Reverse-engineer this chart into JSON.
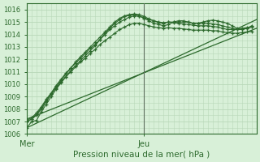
{
  "title": "",
  "xlabel": "Pression niveau de la mer( hPa )",
  "ylim": [
    1006.0,
    1016.5
  ],
  "xlim": [
    0,
    47
  ],
  "background_color": "#d8f0d8",
  "grid_color": "#b8d8b8",
  "line_color": "#2d6a2d",
  "xtick_labels": [
    "Mer",
    "Jeu"
  ],
  "xtick_positions": [
    0,
    24
  ],
  "ytick_positions": [
    1006,
    1007,
    1008,
    1009,
    1010,
    1011,
    1012,
    1013,
    1014,
    1015,
    1016
  ],
  "vline_x": 24,
  "marker_series": [
    [
      1006.5,
      1007.0,
      1007.1,
      1007.8,
      1008.4,
      1009.0,
      1009.6,
      1010.1,
      1010.6,
      1011.1,
      1011.5,
      1011.9,
      1012.3,
      1012.7,
      1013.1,
      1013.6,
      1014.1,
      1014.5,
      1014.9,
      1015.2,
      1015.45,
      1015.55,
      1015.6,
      1015.5,
      1015.3,
      1015.1,
      1014.9,
      1014.8,
      1014.7,
      1014.8,
      1015.0,
      1015.1,
      1015.1,
      1015.0,
      1014.9,
      1014.9,
      1015.0,
      1015.1,
      1015.15,
      1015.1,
      1015.0,
      1014.9,
      1014.7,
      1014.5,
      1014.4,
      1014.5,
      1014.7
    ],
    [
      1007.0,
      1007.2,
      1007.5,
      1008.0,
      1008.6,
      1009.2,
      1009.8,
      1010.3,
      1010.8,
      1011.3,
      1011.8,
      1012.2,
      1012.6,
      1013.0,
      1013.4,
      1013.8,
      1014.2,
      1014.6,
      1015.0,
      1015.3,
      1015.5,
      1015.6,
      1015.65,
      1015.6,
      1015.45,
      1015.25,
      1015.1,
      1014.95,
      1014.9,
      1015.0,
      1015.0,
      1015.0,
      1015.0,
      1015.0,
      1014.9,
      1014.9,
      1014.9,
      1014.9,
      1014.85,
      1014.8,
      1014.7,
      1014.6,
      1014.5,
      1014.4,
      1014.4,
      1014.5,
      1014.6
    ],
    [
      1007.1,
      1007.3,
      1007.7,
      1008.2,
      1008.8,
      1009.3,
      1009.9,
      1010.4,
      1010.9,
      1011.3,
      1011.7,
      1012.1,
      1012.5,
      1012.9,
      1013.2,
      1013.6,
      1014.0,
      1014.4,
      1014.7,
      1015.0,
      1015.2,
      1015.4,
      1015.5,
      1015.45,
      1015.35,
      1015.2,
      1015.1,
      1015.0,
      1014.95,
      1015.0,
      1014.95,
      1014.9,
      1014.85,
      1014.8,
      1014.75,
      1014.7,
      1014.7,
      1014.7,
      1014.65,
      1014.6,
      1014.5,
      1014.4,
      1014.4,
      1014.4,
      1014.5,
      1014.55,
      1014.6
    ],
    [
      1007.0,
      1007.2,
      1007.6,
      1008.1,
      1008.7,
      1009.2,
      1009.7,
      1010.2,
      1010.6,
      1011.0,
      1011.4,
      1011.8,
      1012.1,
      1012.5,
      1012.8,
      1013.2,
      1013.5,
      1013.8,
      1014.1,
      1014.4,
      1014.6,
      1014.8,
      1014.9,
      1014.9,
      1014.8,
      1014.7,
      1014.6,
      1014.55,
      1014.5,
      1014.55,
      1014.5,
      1014.5,
      1014.45,
      1014.4,
      1014.35,
      1014.35,
      1014.35,
      1014.35,
      1014.3,
      1014.3,
      1014.2,
      1014.15,
      1014.1,
      1014.1,
      1014.15,
      1014.2,
      1014.25
    ]
  ],
  "straight_lines": [
    {
      "x": [
        0,
        47
      ],
      "y": [
        1006.5,
        1015.2
      ]
    },
    {
      "x": [
        0,
        47
      ],
      "y": [
        1007.2,
        1014.5
      ]
    }
  ]
}
